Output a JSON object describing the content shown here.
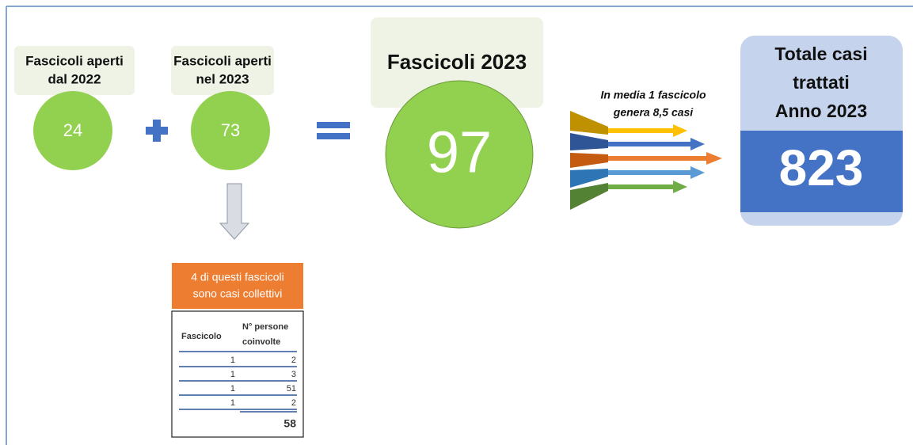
{
  "left": {
    "label": [
      "Fascicoli aperti",
      "dal 2022"
    ],
    "value": 24
  },
  "middle": {
    "label": [
      "Fascicoli aperti",
      "nel 2023"
    ],
    "value": 73
  },
  "sum": {
    "label": "Fascicoli 2023",
    "value": 97
  },
  "note": [
    "In media 1 fascicolo",
    "genera 8,5 casi"
  ],
  "total": {
    "label": [
      "Totale casi",
      "trattati",
      "Anno 2023"
    ],
    "value": 823
  },
  "collective": {
    "label": [
      "4 di questi fascicoli",
      "sono casi collettivi"
    ],
    "table": {
      "columns": [
        "Fascicolo",
        [
          "N° persone",
          "coinvolte"
        ]
      ],
      "rows": [
        [
          1,
          2
        ],
        [
          1,
          3
        ],
        [
          1,
          51
        ],
        [
          1,
          2
        ]
      ],
      "total": 58
    }
  }
}
